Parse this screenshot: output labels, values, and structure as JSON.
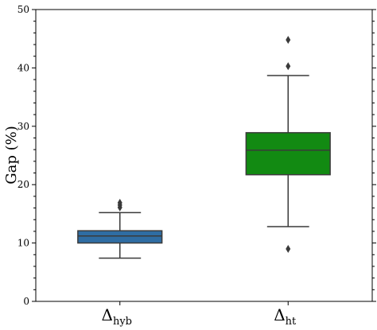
{
  "chart_data": {
    "type": "box",
    "ylabel": "Gap (%)",
    "ylim": [
      0,
      50
    ],
    "yticks": [
      0,
      10,
      20,
      30,
      40,
      50
    ],
    "categories": [
      {
        "symbol": "Δ",
        "sub": "hyb",
        "color": "#2f6da3"
      },
      {
        "symbol": "Δ",
        "sub": "ht",
        "color": "#128a12"
      }
    ],
    "boxes": [
      {
        "whisker_low": 7.4,
        "q1": 10.0,
        "median": 11.2,
        "q3": 12.1,
        "whisker_high": 15.2,
        "outliers": [
          16.1,
          16.5,
          16.9
        ]
      },
      {
        "whisker_low": 12.8,
        "q1": 21.7,
        "median": 25.9,
        "q3": 28.9,
        "whisker_high": 38.7,
        "outliers": [
          9.0,
          40.3,
          44.8
        ]
      }
    ],
    "grid": false
  }
}
